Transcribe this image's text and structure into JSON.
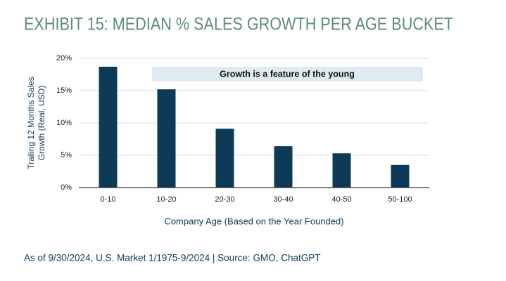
{
  "chart_data": {
    "type": "bar",
    "title": "EXHIBIT 15: MEDIAN % SALES GROWTH PER AGE BUCKET",
    "ylabel": [
      "Trailing 12 Months Sales",
      "Growth (Real, USD)"
    ],
    "xlabel": "Company Age (Based on the Year Founded)",
    "annotation": "Growth is a feature of the young",
    "source": "As of 9/30/2024, U.S. Market 1/1975-9/2024 | Source: GMO, ChatGPT",
    "categories": [
      "0-10",
      "10-20",
      "20-30",
      "30-40",
      "40-50",
      "50-100"
    ],
    "values": [
      18.7,
      15.2,
      9.1,
      6.4,
      5.3,
      3.5
    ],
    "color": "#0d3a56",
    "ylim": [
      0,
      20
    ],
    "yticks": [
      {
        "value": 0,
        "label": "0%"
      },
      {
        "value": 5,
        "label": "5%"
      },
      {
        "value": 10,
        "label": "10%"
      },
      {
        "value": 15,
        "label": "15%"
      },
      {
        "value": 20,
        "label": "20%"
      }
    ],
    "grid": true
  }
}
